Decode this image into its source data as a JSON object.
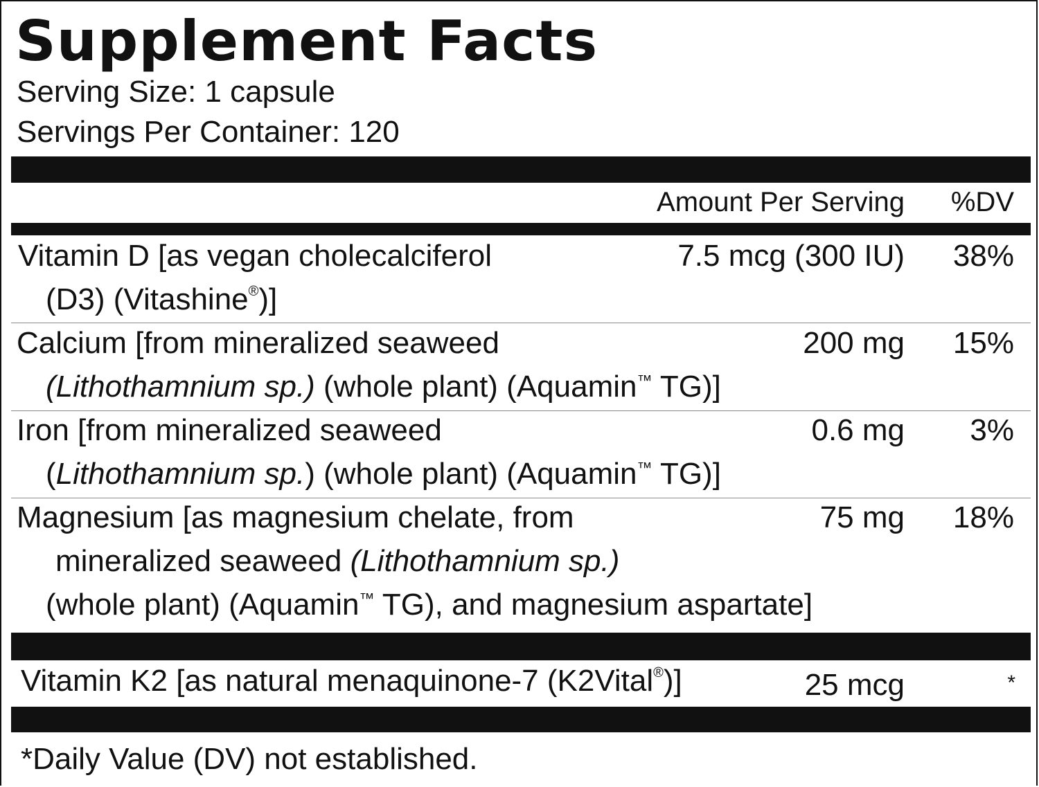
{
  "title": "Supplement Facts",
  "serving_size": "Serving Size: 1 capsule",
  "servings_per_container": "Servings Per Container: 120",
  "header": {
    "amount": "Amount Per Serving",
    "dv": "%DV"
  },
  "rows": [
    {
      "line1": "Vitamin D [as vegan cholecalciferol",
      "line2_a": "(D3) (Vitashine",
      "line2_b": ")]",
      "amount": "7.5 mcg (300 IU)",
      "dv": "38%"
    },
    {
      "line1": "Calcium [from mineralized seaweed",
      "line2_italic": "(Lithothamnium sp.)",
      "line2_a": " (whole plant) (Aquamin",
      "line2_b": " TG)]",
      "amount": "200 mg",
      "dv": "15%"
    },
    {
      "line1": "Iron [from mineralized seaweed",
      "line2_open": "(",
      "line2_italic": "Lithothamnium sp.",
      "line2_a": ") (whole plant) (Aquamin",
      "line2_b": " TG)]",
      "amount": "0.6 mg",
      "dv": "3%"
    },
    {
      "line1": "Magnesium [as magnesium chelate, from",
      "line2_a": "mineralized seaweed ",
      "line2_italic": "(Lithothamnium sp.)",
      "line3_a": "(whole plant) (Aquamin",
      "line3_b": " TG), and magnesium aspartate]",
      "amount": "75 mg",
      "dv": "18%"
    },
    {
      "line1_a": "Vitamin K2 [as natural menaquinone-7 (K2Vital",
      "line1_b": ")]",
      "amount": "25 mcg",
      "dv": "*"
    }
  ],
  "symbols": {
    "registered": "®",
    "trademark": "™"
  },
  "footnote": "*Daily Value (DV) not established."
}
